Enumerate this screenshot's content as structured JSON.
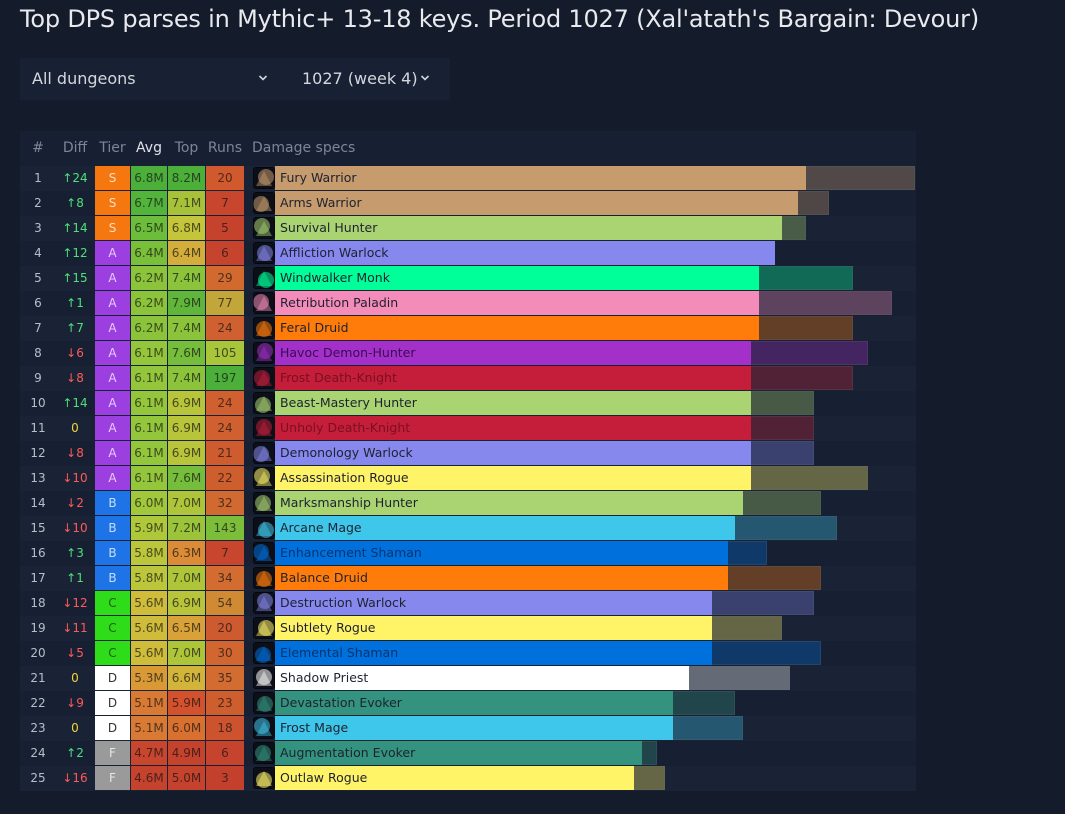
{
  "title": "Top DPS parses in Mythic+ 13-18 keys. Period 1027 (Xal'atath's Bargain: Devour)",
  "filters": {
    "dungeon": "All dungeons",
    "period": "1027 (week 4)"
  },
  "headers": {
    "rank": "#",
    "diff": "Diff",
    "tier": "Tier",
    "avg": "Avg",
    "top": "Top",
    "runs": "Runs",
    "specs": "Damage specs"
  },
  "scale_max_m": 8.2,
  "tier_colors": {
    "S": "#f5770f",
    "A": "#9b3fe0",
    "B": "#1e74e6",
    "C": "#2edc1a",
    "D": "#ffffff",
    "F": "#9a9a9a"
  },
  "rows": [
    {
      "rank": "1",
      "diff": "↑24",
      "dir": "up",
      "tier": "S",
      "avg": "6.8M",
      "top": "8.2M",
      "runs": "20",
      "spec": "Fury Warrior",
      "icon": "fury-warrior-icon",
      "color": "#c69b6d",
      "avg_val": 6.8,
      "top_val": 8.2,
      "avg_bg": "#4caf3a",
      "top_bg": "#4caf3a",
      "runs_bg": "#d05a2e"
    },
    {
      "rank": "2",
      "diff": "↑8",
      "dir": "up",
      "tier": "S",
      "avg": "6.7M",
      "top": "7.1M",
      "runs": "7",
      "spec": "Arms Warrior",
      "icon": "arms-warrior-icon",
      "color": "#c69b6d",
      "avg_val": 6.7,
      "top_val": 7.1,
      "avg_bg": "#52b43a",
      "top_bg": "#a7c238",
      "runs_bg": "#c8452e"
    },
    {
      "rank": "3",
      "diff": "↑14",
      "dir": "up",
      "tier": "S",
      "avg": "6.5M",
      "top": "6.8M",
      "runs": "5",
      "spec": "Survival Hunter",
      "icon": "survival-hunter-icon",
      "color": "#aad372",
      "avg_val": 6.5,
      "top_val": 6.8,
      "avg_bg": "#6cbd3a",
      "top_bg": "#c4c53a",
      "runs_bg": "#c5432d"
    },
    {
      "rank": "4",
      "diff": "↑12",
      "dir": "up",
      "tier": "A",
      "avg": "6.4M",
      "top": "6.4M",
      "runs": "6",
      "spec": "Affliction Warlock",
      "icon": "affliction-warlock-icon",
      "color": "#8788ee",
      "avg_val": 6.4,
      "top_val": 6.4,
      "avg_bg": "#79bf3a",
      "top_bg": "#d4ae3a",
      "runs_bg": "#c6442d"
    },
    {
      "rank": "5",
      "diff": "↑15",
      "dir": "up",
      "tier": "A",
      "avg": "6.2M",
      "top": "7.4M",
      "runs": "29",
      "spec": "Windwalker Monk",
      "icon": "windwalker-monk-icon",
      "color": "#00ff98",
      "avg_val": 6.2,
      "top_val": 7.4,
      "avg_bg": "#8bc43a",
      "top_bg": "#8bc43a",
      "runs_bg": "#d26a30"
    },
    {
      "rank": "6",
      "diff": "↑1",
      "dir": "up",
      "tier": "A",
      "avg": "6.2M",
      "top": "7.9M",
      "runs": "77",
      "spec": "Retribution Paladin",
      "icon": "retribution-paladin-icon",
      "color": "#f48cba",
      "avg_val": 6.2,
      "top_val": 7.9,
      "avg_bg": "#8bc43a",
      "top_bg": "#5fb63a",
      "runs_bg": "#c3a63a"
    },
    {
      "rank": "7",
      "diff": "↑7",
      "dir": "up",
      "tier": "A",
      "avg": "6.2M",
      "top": "7.4M",
      "runs": "24",
      "spec": "Feral Druid",
      "icon": "feral-druid-icon",
      "color": "#ff7c0a",
      "avg_val": 6.2,
      "top_val": 7.4,
      "avg_bg": "#8bc43a",
      "top_bg": "#8bc43a",
      "runs_bg": "#d0602f"
    },
    {
      "rank": "8",
      "diff": "↓6",
      "dir": "down",
      "tier": "A",
      "avg": "6.1M",
      "top": "7.6M",
      "runs": "105",
      "spec": "Havoc Demon-Hunter",
      "icon": "havoc-demon-hunter-icon",
      "color": "#a330c9",
      "avg_val": 6.1,
      "top_val": 7.6,
      "avg_bg": "#93c63a",
      "top_bg": "#75bd3a",
      "runs_bg": "#a9c53a"
    },
    {
      "rank": "9",
      "diff": "↓8",
      "dir": "down",
      "tier": "A",
      "avg": "6.1M",
      "top": "7.4M",
      "runs": "197",
      "spec": "Frost Death-Knight",
      "icon": "frost-death-knight-icon",
      "color": "#c41e3a",
      "avg_val": 6.1,
      "top_val": 7.4,
      "avg_bg": "#93c63a",
      "top_bg": "#8bc43a",
      "runs_bg": "#4caf3a"
    },
    {
      "rank": "10",
      "diff": "↑14",
      "dir": "up",
      "tier": "A",
      "avg": "6.1M",
      "top": "6.9M",
      "runs": "24",
      "spec": "Beast-Mastery Hunter",
      "icon": "beast-mastery-hunter-icon",
      "color": "#aad372",
      "avg_val": 6.1,
      "top_val": 6.9,
      "avg_bg": "#93c63a",
      "top_bg": "#b8c43a",
      "runs_bg": "#d0602f"
    },
    {
      "rank": "11",
      "diff": "0",
      "dir": "zero",
      "tier": "A",
      "avg": "6.1M",
      "top": "6.9M",
      "runs": "24",
      "spec": "Unholy Death-Knight",
      "icon": "unholy-death-knight-icon",
      "color": "#c41e3a",
      "avg_val": 6.1,
      "top_val": 6.9,
      "avg_bg": "#93c63a",
      "top_bg": "#b8c43a",
      "runs_bg": "#d0602f"
    },
    {
      "rank": "12",
      "diff": "↓8",
      "dir": "down",
      "tier": "A",
      "avg": "6.1M",
      "top": "6.9M",
      "runs": "21",
      "spec": "Demonology Warlock",
      "icon": "demonology-warlock-icon",
      "color": "#8788ee",
      "avg_val": 6.1,
      "top_val": 6.9,
      "avg_bg": "#93c63a",
      "top_bg": "#b8c43a",
      "runs_bg": "#cf5c2f"
    },
    {
      "rank": "13",
      "diff": "↓10",
      "dir": "down",
      "tier": "A",
      "avg": "6.1M",
      "top": "7.6M",
      "runs": "22",
      "spec": "Assassination Rogue",
      "icon": "assassination-rogue-icon",
      "color": "#fff468",
      "avg_val": 6.1,
      "top_val": 7.6,
      "avg_bg": "#93c63a",
      "top_bg": "#75bd3a",
      "runs_bg": "#cf5e2f"
    },
    {
      "rank": "14",
      "diff": "↓2",
      "dir": "down",
      "tier": "B",
      "avg": "6.0M",
      "top": "7.0M",
      "runs": "32",
      "spec": "Marksmanship Hunter",
      "icon": "marksmanship-hunter-icon",
      "color": "#aad372",
      "avg_val": 6.0,
      "top_val": 7.0,
      "avg_bg": "#a0c83a",
      "top_bg": "#aec53a",
      "runs_bg": "#d16a30"
    },
    {
      "rank": "15",
      "diff": "↓10",
      "dir": "down",
      "tier": "B",
      "avg": "5.9M",
      "top": "7.2M",
      "runs": "143",
      "spec": "Arcane Mage",
      "icon": "arcane-mage-icon",
      "color": "#3fc7eb",
      "avg_val": 5.9,
      "top_val": 7.2,
      "avg_bg": "#aec83a",
      "top_bg": "#9cc43a",
      "runs_bg": "#7cbd3a"
    },
    {
      "rank": "16",
      "diff": "↑3",
      "dir": "up",
      "tier": "B",
      "avg": "5.8M",
      "top": "6.3M",
      "runs": "7",
      "spec": "Enhancement Shaman",
      "icon": "enhancement-shaman-icon",
      "color": "#0070dd",
      "avg_val": 5.8,
      "top_val": 6.3,
      "avg_bg": "#bcc63a",
      "top_bg": "#dc8c36",
      "runs_bg": "#c8452e"
    },
    {
      "rank": "17",
      "diff": "↑1",
      "dir": "up",
      "tier": "B",
      "avg": "5.8M",
      "top": "7.0M",
      "runs": "34",
      "spec": "Balance Druid",
      "icon": "balance-druid-icon",
      "color": "#ff7c0a",
      "avg_val": 5.8,
      "top_val": 7.0,
      "avg_bg": "#bcc63a",
      "top_bg": "#aec53a",
      "runs_bg": "#d26c30"
    },
    {
      "rank": "18",
      "diff": "↓12",
      "dir": "down",
      "tier": "C",
      "avg": "5.6M",
      "top": "6.9M",
      "runs": "54",
      "spec": "Destruction Warlock",
      "icon": "destruction-warlock-icon",
      "color": "#8788ee",
      "avg_val": 5.6,
      "top_val": 6.9,
      "avg_bg": "#cfbc3a",
      "top_bg": "#b8c43a",
      "runs_bg": "#d08a34"
    },
    {
      "rank": "19",
      "diff": "↓11",
      "dir": "down",
      "tier": "C",
      "avg": "5.6M",
      "top": "6.5M",
      "runs": "20",
      "spec": "Subtlety Rogue",
      "icon": "subtlety-rogue-icon",
      "color": "#fff468",
      "avg_val": 5.6,
      "top_val": 6.5,
      "avg_bg": "#cfbc3a",
      "top_bg": "#d8a238",
      "runs_bg": "#ce5a2f"
    },
    {
      "rank": "20",
      "diff": "↓5",
      "dir": "down",
      "tier": "C",
      "avg": "5.6M",
      "top": "7.0M",
      "runs": "30",
      "spec": "Elemental Shaman",
      "icon": "elemental-shaman-icon",
      "color": "#0070dd",
      "avg_val": 5.6,
      "top_val": 7.0,
      "avg_bg": "#cfbc3a",
      "top_bg": "#aec53a",
      "runs_bg": "#d16630"
    },
    {
      "rank": "21",
      "diff": "0",
      "dir": "zero",
      "tier": "D",
      "avg": "5.3M",
      "top": "6.6M",
      "runs": "35",
      "spec": "Shadow Priest",
      "icon": "shadow-priest-icon",
      "color": "#ffffff",
      "avg_val": 5.3,
      "top_val": 6.6,
      "avg_bg": "#d99a36",
      "top_bg": "#d2b43a",
      "runs_bg": "#d26c30"
    },
    {
      "rank": "22",
      "diff": "↓9",
      "dir": "down",
      "tier": "D",
      "avg": "5.1M",
      "top": "5.9M",
      "runs": "23",
      "spec": "Devastation Evoker",
      "icon": "devastation-evoker-icon",
      "color": "#33937f",
      "avg_val": 5.1,
      "top_val": 5.9,
      "avg_bg": "#d87a33",
      "top_bg": "#d4512e",
      "runs_bg": "#cf5e2f"
    },
    {
      "rank": "23",
      "diff": "0",
      "dir": "zero",
      "tier": "D",
      "avg": "5.1M",
      "top": "6.0M",
      "runs": "18",
      "spec": "Frost Mage",
      "icon": "frost-mage-icon",
      "color": "#3fc7eb",
      "avg_val": 5.1,
      "top_val": 6.0,
      "avg_bg": "#d87a33",
      "top_bg": "#d8702f",
      "runs_bg": "#cc532e"
    },
    {
      "rank": "24",
      "diff": "↑2",
      "dir": "up",
      "tier": "F",
      "avg": "4.7M",
      "top": "4.9M",
      "runs": "6",
      "spec": "Augmentation Evoker",
      "icon": "augmentation-evoker-icon",
      "color": "#33937f",
      "avg_val": 4.7,
      "top_val": 4.9,
      "avg_bg": "#c8452e",
      "top_bg": "#c5422d",
      "runs_bg": "#c6442d"
    },
    {
      "rank": "25",
      "diff": "↓16",
      "dir": "down",
      "tier": "F",
      "avg": "4.6M",
      "top": "5.0M",
      "runs": "3",
      "spec": "Outlaw Rogue",
      "icon": "outlaw-rogue-icon",
      "color": "#fff468",
      "avg_val": 4.6,
      "top_val": 5.0,
      "avg_bg": "#c5422d",
      "top_bg": "#c5422d",
      "runs_bg": "#c3402d"
    }
  ]
}
